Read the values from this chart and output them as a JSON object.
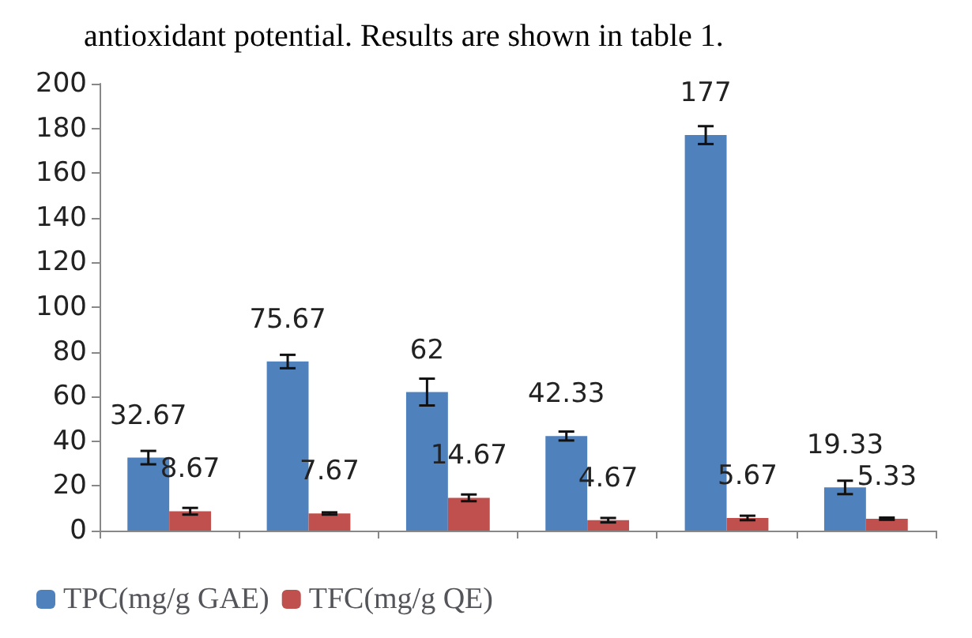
{
  "chart_data": {
    "type": "bar",
    "annotations": [
      "antioxidant potential. Results are shown in table 1."
    ],
    "categories": [
      null,
      null,
      null,
      null,
      null,
      null
    ],
    "series": [
      {
        "name": "TPC(mg/g GAE)",
        "color": "#4f81bd",
        "values": [
          32.67,
          75.67,
          62,
          42.33,
          177,
          19.33
        ],
        "errors": [
          3,
          3,
          6,
          2,
          4,
          3
        ]
      },
      {
        "name": "TFC(mg/g QE)",
        "color": "#c0504d",
        "values": [
          8.67,
          7.67,
          14.67,
          4.67,
          5.67,
          5.33
        ],
        "errors": [
          1.5,
          0.5,
          1.5,
          1,
          1,
          0.5
        ]
      }
    ],
    "ylim": [
      0,
      200
    ],
    "yticks": [
      0,
      20,
      40,
      60,
      80,
      100,
      120,
      140,
      160,
      180,
      200
    ],
    "data_labels": true,
    "grid": false,
    "legend": "bottom"
  }
}
